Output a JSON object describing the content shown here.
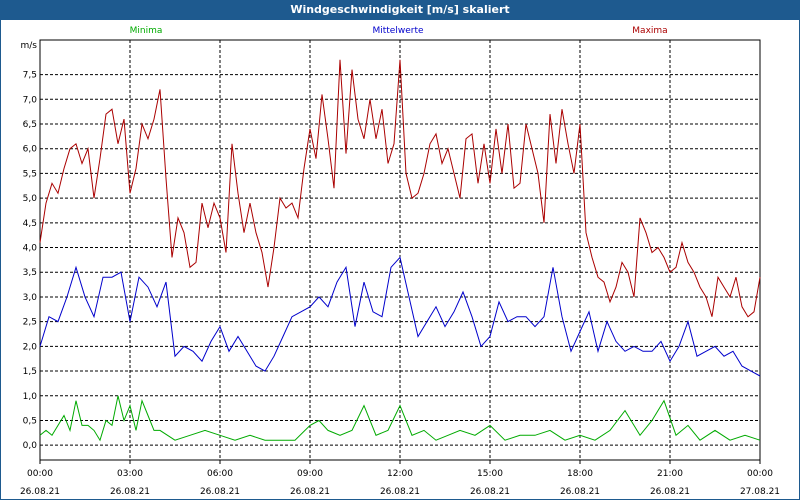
{
  "window_title": "Windgeschwindigkeit [m/s] skaliert",
  "chart_data": {
    "type": "line",
    "title": "Windgeschwindigkeit [m/s] skaliert",
    "ylabel": "m/s",
    "ylim": [
      -0.3,
      8.2
    ],
    "y_ticks": [
      "0,0",
      "0,5",
      "1,0",
      "1,5",
      "2,0",
      "2,5",
      "3,0",
      "3,5",
      "4,0",
      "4,5",
      "5,0",
      "5,5",
      "6,0",
      "6,5",
      "7,0",
      "7,5"
    ],
    "xlim": [
      0,
      24
    ],
    "x_ticks": [
      {
        "time": "00:00",
        "date": "26.08.21"
      },
      {
        "time": "03:00",
        "date": "26.08.21"
      },
      {
        "time": "06:00",
        "date": "26.08.21"
      },
      {
        "time": "09:00",
        "date": "26.08.21"
      },
      {
        "time": "12:00",
        "date": "26.08.21"
      },
      {
        "time": "15:00",
        "date": "26.08.21"
      },
      {
        "time": "18:00",
        "date": "26.08.21"
      },
      {
        "time": "21:00",
        "date": "26.08.21"
      },
      {
        "time": "00:00",
        "date": "27.08.21"
      }
    ],
    "grid": true,
    "legend_position": "top",
    "series": [
      {
        "name": "Minima",
        "color": "#00aa00",
        "x": [
          0,
          0.2,
          0.4,
          0.6,
          0.8,
          1.0,
          1.2,
          1.4,
          1.6,
          1.8,
          2.0,
          2.2,
          2.4,
          2.6,
          2.8,
          3.0,
          3.2,
          3.4,
          3.6,
          3.8,
          4.0,
          4.5,
          5.0,
          5.5,
          6.0,
          6.5,
          7.0,
          7.5,
          8.0,
          8.5,
          9.0,
          9.3,
          9.6,
          10.0,
          10.4,
          10.8,
          11.2,
          11.6,
          12.0,
          12.4,
          12.8,
          13.2,
          13.6,
          14.0,
          14.5,
          15.0,
          15.5,
          16.0,
          16.5,
          17.0,
          17.5,
          18.0,
          18.5,
          19.0,
          19.5,
          20.0,
          20.4,
          20.8,
          21.2,
          21.6,
          22.0,
          22.5,
          23.0,
          23.5,
          24.0
        ],
        "values": [
          0.2,
          0.3,
          0.2,
          0.4,
          0.6,
          0.3,
          0.9,
          0.4,
          0.4,
          0.3,
          0.1,
          0.5,
          0.4,
          1.0,
          0.5,
          0.8,
          0.3,
          0.9,
          0.6,
          0.3,
          0.3,
          0.1,
          0.2,
          0.3,
          0.2,
          0.1,
          0.2,
          0.1,
          0.1,
          0.1,
          0.4,
          0.5,
          0.3,
          0.2,
          0.3,
          0.8,
          0.2,
          0.3,
          0.8,
          0.2,
          0.3,
          0.1,
          0.2,
          0.3,
          0.2,
          0.4,
          0.1,
          0.2,
          0.2,
          0.3,
          0.1,
          0.2,
          0.1,
          0.3,
          0.7,
          0.2,
          0.5,
          0.9,
          0.2,
          0.4,
          0.1,
          0.3,
          0.1,
          0.2,
          0.1
        ]
      },
      {
        "name": "Mittelwerte",
        "color": "#0000cc",
        "x": [
          0,
          0.3,
          0.6,
          0.9,
          1.2,
          1.5,
          1.8,
          2.1,
          2.4,
          2.7,
          3.0,
          3.3,
          3.6,
          3.9,
          4.2,
          4.5,
          4.8,
          5.1,
          5.4,
          5.7,
          6.0,
          6.3,
          6.6,
          6.9,
          7.2,
          7.5,
          7.8,
          8.1,
          8.4,
          8.7,
          9.0,
          9.3,
          9.6,
          9.9,
          10.2,
          10.5,
          10.8,
          11.1,
          11.4,
          11.7,
          12.0,
          12.3,
          12.6,
          12.9,
          13.2,
          13.5,
          13.8,
          14.1,
          14.4,
          14.7,
          15.0,
          15.3,
          15.6,
          15.9,
          16.2,
          16.5,
          16.8,
          17.1,
          17.4,
          17.7,
          18.0,
          18.3,
          18.6,
          18.9,
          19.2,
          19.5,
          19.8,
          20.1,
          20.4,
          20.7,
          21.0,
          21.3,
          21.6,
          21.9,
          22.2,
          22.5,
          22.8,
          23.1,
          23.4,
          23.7,
          24.0
        ],
        "values": [
          2.0,
          2.6,
          2.5,
          3.0,
          3.6,
          3.0,
          2.6,
          3.4,
          3.4,
          3.5,
          2.5,
          3.4,
          3.2,
          2.8,
          3.3,
          1.8,
          2.0,
          1.9,
          1.7,
          2.1,
          2.4,
          1.9,
          2.2,
          1.9,
          1.6,
          1.5,
          1.8,
          2.2,
          2.6,
          2.7,
          2.8,
          3.0,
          2.8,
          3.3,
          3.6,
          2.4,
          3.3,
          2.7,
          2.6,
          3.6,
          3.8,
          3.0,
          2.2,
          2.5,
          2.8,
          2.4,
          2.7,
          3.1,
          2.6,
          2.0,
          2.2,
          2.9,
          2.5,
          2.6,
          2.6,
          2.4,
          2.6,
          3.6,
          2.6,
          1.9,
          2.3,
          2.7,
          1.9,
          2.5,
          2.1,
          1.9,
          2.0,
          1.9,
          1.9,
          2.1,
          1.7,
          2.0,
          2.5,
          1.8,
          1.9,
          2.0,
          1.8,
          1.9,
          1.6,
          1.5,
          1.4
        ]
      },
      {
        "name": "Maxima",
        "color": "#aa0000",
        "x": [
          0,
          0.2,
          0.4,
          0.6,
          0.8,
          1.0,
          1.2,
          1.4,
          1.6,
          1.8,
          2.0,
          2.2,
          2.4,
          2.6,
          2.8,
          3.0,
          3.2,
          3.4,
          3.6,
          3.8,
          4.0,
          4.2,
          4.4,
          4.6,
          4.8,
          5.0,
          5.2,
          5.4,
          5.6,
          5.8,
          6.0,
          6.2,
          6.4,
          6.6,
          6.8,
          7.0,
          7.2,
          7.4,
          7.6,
          7.8,
          8.0,
          8.2,
          8.4,
          8.6,
          8.8,
          9.0,
          9.2,
          9.4,
          9.6,
          9.8,
          10.0,
          10.2,
          10.4,
          10.6,
          10.8,
          11.0,
          11.2,
          11.4,
          11.6,
          11.8,
          12.0,
          12.2,
          12.4,
          12.6,
          12.8,
          13.0,
          13.2,
          13.4,
          13.6,
          13.8,
          14.0,
          14.2,
          14.4,
          14.6,
          14.8,
          15.0,
          15.2,
          15.4,
          15.6,
          15.8,
          16.0,
          16.2,
          16.4,
          16.6,
          16.8,
          17.0,
          17.2,
          17.4,
          17.6,
          17.8,
          18.0,
          18.2,
          18.4,
          18.6,
          18.8,
          19.0,
          19.2,
          19.4,
          19.6,
          19.8,
          20.0,
          20.2,
          20.4,
          20.6,
          20.8,
          21.0,
          21.2,
          21.4,
          21.6,
          21.8,
          22.0,
          22.2,
          22.4,
          22.6,
          22.8,
          23.0,
          23.2,
          23.4,
          23.6,
          23.8,
          24.0
        ],
        "values": [
          4.1,
          4.9,
          5.3,
          5.1,
          5.6,
          6.0,
          6.1,
          5.7,
          6.0,
          5.0,
          5.8,
          6.7,
          6.8,
          6.1,
          6.6,
          5.1,
          5.6,
          6.5,
          6.2,
          6.6,
          7.2,
          5.4,
          3.8,
          4.6,
          4.3,
          3.6,
          3.7,
          4.9,
          4.4,
          4.9,
          4.6,
          3.9,
          6.1,
          5.1,
          4.3,
          4.9,
          4.3,
          3.9,
          3.2,
          4.0,
          5.0,
          4.8,
          4.9,
          4.6,
          5.6,
          6.4,
          5.8,
          7.1,
          6.2,
          5.2,
          7.8,
          5.9,
          7.6,
          6.6,
          6.2,
          7.0,
          6.2,
          6.8,
          5.7,
          6.1,
          7.8,
          5.5,
          5.0,
          5.1,
          5.5,
          6.1,
          6.3,
          5.7,
          6.0,
          5.5,
          5.0,
          6.2,
          6.3,
          5.3,
          6.1,
          5.3,
          6.4,
          5.5,
          6.5,
          5.2,
          5.3,
          6.5,
          6.0,
          5.5,
          4.5,
          6.7,
          5.7,
          6.8,
          6.1,
          5.5,
          6.5,
          4.3,
          3.8,
          3.4,
          3.3,
          2.9,
          3.2,
          3.7,
          3.5,
          3.0,
          4.6,
          4.3,
          3.9,
          4.0,
          3.8,
          3.5,
          3.6,
          4.1,
          3.7,
          3.5,
          3.2,
          3.0,
          2.6,
          3.4,
          3.2,
          3.0,
          3.4,
          2.8,
          2.6,
          2.7,
          3.4
        ]
      }
    ]
  }
}
